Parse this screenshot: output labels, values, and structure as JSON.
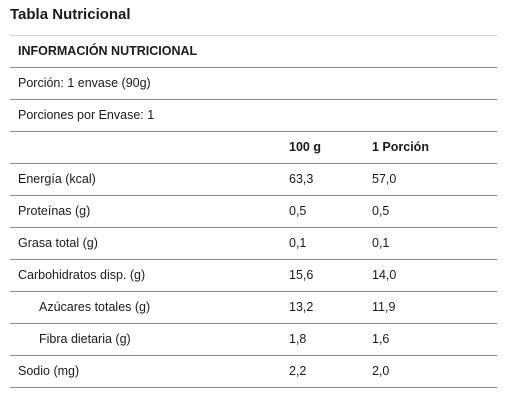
{
  "title": "Tabla Nutricional",
  "table": {
    "heading": "INFORMACIÓN NUTRICIONAL",
    "serving": "Porción: 1 envase (90g)",
    "servings_per_container": "Porciones por Envase: 1",
    "columns": {
      "label": "",
      "per_100g": "100 g",
      "per_portion": "1 Porción"
    },
    "rows": [
      {
        "label": "Energía (kcal)",
        "per_100g": "63,3",
        "per_portion": "57,0"
      },
      {
        "label": "Proteínas (g)",
        "per_100g": "0,5",
        "per_portion": "0,5"
      },
      {
        "label": "Grasa total (g)",
        "per_100g": "0,1",
        "per_portion": "0,1"
      },
      {
        "label": "Carbohidratos disp. (g)",
        "per_100g": "15,6",
        "per_portion": "14,0"
      },
      {
        "label": "Azúcares totales (g)",
        "per_100g": "13,2",
        "per_portion": "11,9"
      },
      {
        "label": "Fibra dietaria (g)",
        "per_100g": "1,8",
        "per_portion": "1,6"
      },
      {
        "label": "Sodio (mg)",
        "per_100g": "2,2",
        "per_portion": "2,0"
      }
    ]
  }
}
